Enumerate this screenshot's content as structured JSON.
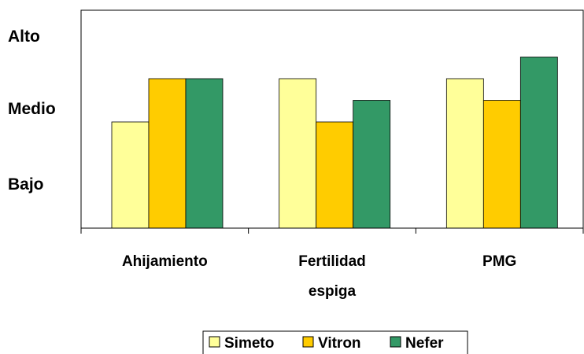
{
  "chart_data": {
    "type": "bar",
    "categories": [
      [
        "Ahijamiento"
      ],
      [
        "Fertilidad",
        "espiga"
      ],
      [
        "PMG"
      ]
    ],
    "y_levels": [
      "Bajo",
      "Medio",
      "Alto"
    ],
    "ylim": [
      0,
      10
    ],
    "series": [
      {
        "name": "Simeto",
        "color": "#FFFF99",
        "values": [
          5.0,
          7.0,
          7.0
        ]
      },
      {
        "name": "Vitron",
        "color": "#FFCC00",
        "values": [
          7.0,
          5.0,
          6.0
        ]
      },
      {
        "name": "Nefer",
        "color": "#339966",
        "values": [
          7.0,
          6.0,
          8.0
        ]
      }
    ],
    "grid": false,
    "legend_position": "bottom"
  }
}
